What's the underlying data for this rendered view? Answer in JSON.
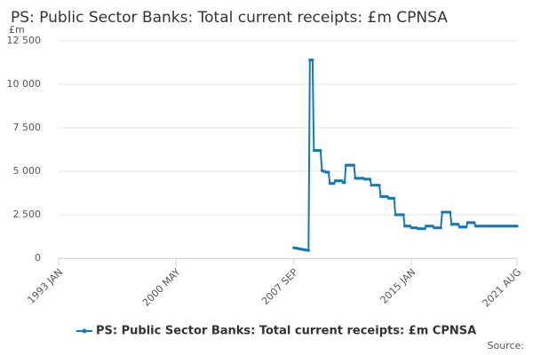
{
  "chart_data": {
    "type": "line",
    "title": "PS: Public Sector Banks: Total current receipts: £m CPNSA",
    "y_label": "£m",
    "source": "Source:",
    "grid": true,
    "legend": "bottom",
    "ylim": [
      0,
      12500
    ],
    "yticks": [
      0,
      {
        "value": 2500,
        "label": "2 500"
      },
      {
        "value": 5000,
        "label": "5 000"
      },
      {
        "value": 7500,
        "label": "7 500"
      },
      {
        "value": 10000,
        "label": "10 000"
      },
      {
        "value": 12500,
        "label": "12 500"
      }
    ],
    "xlim": [
      "1993 JAN",
      "2021 AUG"
    ],
    "xticks": [
      "1993 JAN",
      "2000 MAY",
      "2007 SEP",
      "2015 JAN",
      "2021 AUG"
    ],
    "x": [
      "2007 SEP",
      "2007 OCT",
      "2007 NOV",
      "2007 DEC",
      "2008 JAN",
      "2008 FEB",
      "2008 MAR",
      "2008 APR",
      "2008 MAY",
      "2008 JUN",
      "2008 JUL",
      "2008 AUG",
      "2008 SEP",
      "2008 OCT",
      "2008 NOV",
      "2008 DEC",
      "2009 JAN",
      "2009 FEB",
      "2009 MAR",
      "2009 APR",
      "2009 MAY",
      "2009 JUN",
      "2009 JUL",
      "2009 AUG",
      "2009 SEP",
      "2009 OCT",
      "2009 NOV",
      "2009 DEC",
      "2010 JAN",
      "2010 FEB",
      "2010 MAR",
      "2010 APR",
      "2010 MAY",
      "2010 JUN",
      "2010 JUL",
      "2010 AUG",
      "2010 SEP",
      "2010 OCT",
      "2010 NOV",
      "2010 DEC",
      "2011 JAN",
      "2011 FEB",
      "2011 MAR",
      "2011 APR",
      "2011 MAY",
      "2011 JUN",
      "2011 JUL",
      "2011 AUG",
      "2011 SEP",
      "2011 OCT",
      "2011 NOV",
      "2011 DEC",
      "2012 JAN",
      "2012 FEB",
      "2012 MAR",
      "2012 APR",
      "2012 MAY",
      "2012 JUN",
      "2012 JUL",
      "2012 AUG",
      "2012 SEP",
      "2012 OCT",
      "2012 NOV",
      "2012 DEC",
      "2013 JAN",
      "2013 FEB",
      "2013 MAR",
      "2013 APR",
      "2013 MAY",
      "2013 JUN",
      "2013 JUL",
      "2013 AUG",
      "2013 SEP",
      "2013 OCT",
      "2013 NOV",
      "2013 DEC",
      "2014 JAN",
      "2014 FEB",
      "2014 MAR",
      "2014 APR",
      "2014 MAY",
      "2014 JUN",
      "2014 JUL",
      "2014 AUG",
      "2014 SEP",
      "2014 OCT",
      "2014 NOV",
      "2014 DEC",
      "2015 JAN",
      "2015 FEB",
      "2015 MAR",
      "2015 APR",
      "2015 MAY",
      "2015 JUN",
      "2015 JUL",
      "2015 AUG",
      "2015 SEP",
      "2015 OCT",
      "2015 NOV",
      "2015 DEC",
      "2016 JAN",
      "2016 FEB",
      "2016 MAR",
      "2016 APR",
      "2016 MAY",
      "2016 JUN",
      "2016 JUL",
      "2016 AUG",
      "2016 SEP",
      "2016 OCT",
      "2016 NOV",
      "2016 DEC",
      "2017 JAN",
      "2017 FEB",
      "2017 MAR",
      "2017 APR",
      "2017 MAY",
      "2017 JUN",
      "2017 JUL",
      "2017 AUG",
      "2017 SEP",
      "2017 OCT",
      "2017 NOV",
      "2017 DEC",
      "2018 JAN",
      "2018 FEB",
      "2018 MAR",
      "2018 APR",
      "2018 MAY",
      "2018 JUN",
      "2018 JUL",
      "2018 AUG",
      "2018 SEP",
      "2018 OCT",
      "2018 NOV",
      "2018 DEC",
      "2019 JAN",
      "2019 FEB",
      "2019 MAR",
      "2019 APR",
      "2019 MAY",
      "2019 JUN",
      "2019 JUL",
      "2019 AUG",
      "2019 SEP",
      "2019 OCT",
      "2019 NOV",
      "2019 DEC",
      "2020 JAN",
      "2020 FEB",
      "2020 MAR",
      "2020 APR",
      "2020 MAY",
      "2020 JUN",
      "2020 JUL",
      "2020 AUG",
      "2020 SEP",
      "2020 OCT",
      "2020 NOV",
      "2020 DEC",
      "2021 JAN",
      "2021 FEB",
      "2021 MAR",
      "2021 APR",
      "2021 MAY",
      "2021 JUN",
      "2021 JUL",
      "2021 AUG"
    ],
    "series": [
      {
        "name": "PS: Public Sector Banks: Total current receipts: £m CPNSA",
        "color": "#1479b8",
        "values": [
          600,
          590,
          580,
          560,
          550,
          530,
          520,
          500,
          490,
          480,
          460,
          450,
          11400,
          11400,
          11400,
          6200,
          6200,
          6200,
          6200,
          6200,
          6200,
          5050,
          5000,
          5000,
          4950,
          4950,
          4950,
          4300,
          4300,
          4300,
          4300,
          4450,
          4450,
          4450,
          4450,
          4450,
          4450,
          4350,
          4350,
          5350,
          5350,
          5350,
          5350,
          5350,
          5350,
          5350,
          4600,
          4600,
          4600,
          4600,
          4600,
          4600,
          4600,
          4550,
          4550,
          4550,
          4550,
          4550,
          4200,
          4200,
          4200,
          4200,
          4200,
          4200,
          4200,
          3550,
          3550,
          3550,
          3550,
          3550,
          3550,
          3450,
          3450,
          3450,
          3450,
          3450,
          2500,
          2500,
          2500,
          2500,
          2500,
          2500,
          2500,
          1850,
          1850,
          1850,
          1850,
          1850,
          1750,
          1750,
          1750,
          1750,
          1750,
          1700,
          1700,
          1700,
          1700,
          1700,
          1700,
          1850,
          1850,
          1850,
          1850,
          1850,
          1850,
          1750,
          1750,
          1750,
          1750,
          1750,
          1750,
          2650,
          2650,
          2650,
          2650,
          2650,
          2650,
          2650,
          1950,
          1950,
          1950,
          1950,
          1950,
          1950,
          1800,
          1800,
          1800,
          1800,
          1800,
          1800,
          2050,
          2050,
          2050,
          2050,
          2050,
          2050,
          1850,
          1850,
          1850,
          1850,
          1850,
          1850,
          1850,
          1850,
          1850,
          1850,
          1850,
          1850,
          1850,
          1850,
          1850,
          1850,
          1850,
          1850,
          1850,
          1850,
          1850,
          1850,
          1850,
          1850,
          1850,
          1850,
          1850,
          1850,
          1850,
          1850,
          1850,
          1850
        ]
      }
    ]
  }
}
